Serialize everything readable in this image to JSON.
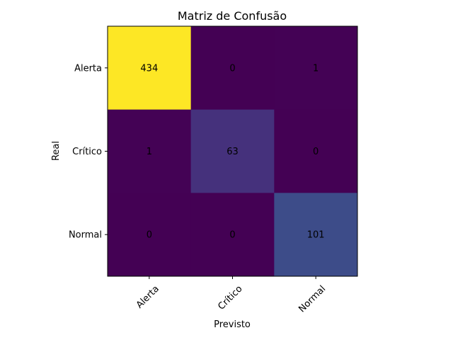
{
  "chart_data": {
    "type": "heatmap",
    "title": "Matriz de Confusão",
    "xlabel": "Previsto",
    "ylabel": "Real",
    "x_categories": [
      "Alerta",
      "Crítico",
      "Normal"
    ],
    "y_categories": [
      "Alerta",
      "Crítico",
      "Normal"
    ],
    "values": [
      [
        434,
        0,
        1
      ],
      [
        1,
        63,
        0
      ],
      [
        0,
        0,
        101
      ]
    ],
    "colormap": "viridis",
    "value_range": [
      0,
      434
    ],
    "grid": false,
    "colorbar": false
  }
}
